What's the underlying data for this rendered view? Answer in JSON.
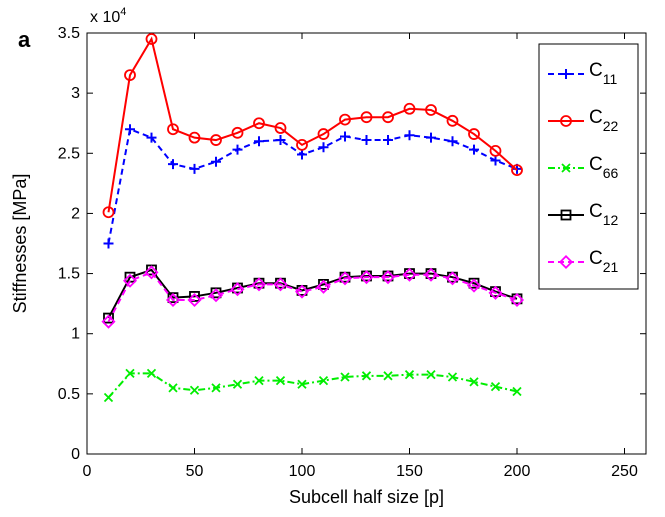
{
  "panel_label": "a",
  "chart_data": {
    "type": "line",
    "xlabel": "Subcell half size [p]",
    "ylabel": "Stiffnesses [MPa]",
    "y_multiplier_label": "x 10",
    "y_multiplier_exp": "4",
    "xlim": [
      0,
      260
    ],
    "ylim": [
      0,
      3.5
    ],
    "xticks": [
      0,
      50,
      100,
      150,
      200,
      250
    ],
    "yticks": [
      0,
      0.5,
      1,
      1.5,
      2,
      2.5,
      3,
      3.5
    ],
    "grid": false,
    "legend_position": "top-right",
    "x": [
      10,
      20,
      30,
      40,
      50,
      60,
      70,
      80,
      90,
      100,
      110,
      120,
      130,
      140,
      150,
      160,
      170,
      180,
      190,
      200
    ],
    "series": [
      {
        "name": "C11",
        "label_main": "C",
        "label_sub": "11",
        "color": "#0000ff",
        "dash": "6,4",
        "marker": "plus",
        "values": [
          1.75,
          2.7,
          2.63,
          2.41,
          2.37,
          2.43,
          2.53,
          2.6,
          2.61,
          2.49,
          2.55,
          2.64,
          2.61,
          2.61,
          2.65,
          2.63,
          2.6,
          2.53,
          2.44,
          2.37
        ]
      },
      {
        "name": "C22",
        "label_main": "C",
        "label_sub": "22",
        "color": "#ff0000",
        "dash": "",
        "marker": "circle",
        "values": [
          2.01,
          3.15,
          3.45,
          2.7,
          2.63,
          2.61,
          2.67,
          2.75,
          2.71,
          2.57,
          2.66,
          2.78,
          2.8,
          2.8,
          2.87,
          2.86,
          2.77,
          2.66,
          2.52,
          2.36
        ]
      },
      {
        "name": "C66",
        "label_main": "C",
        "label_sub": "66",
        "color": "#00ee00",
        "dash": "7,3,2,3",
        "marker": "x",
        "values": [
          0.47,
          0.67,
          0.67,
          0.55,
          0.53,
          0.55,
          0.58,
          0.61,
          0.61,
          0.58,
          0.61,
          0.64,
          0.65,
          0.65,
          0.66,
          0.66,
          0.64,
          0.6,
          0.56,
          0.52
        ]
      },
      {
        "name": "C12",
        "label_main": "C",
        "label_sub": "12",
        "color": "#000000",
        "dash": "",
        "marker": "square",
        "values": [
          1.13,
          1.47,
          1.53,
          1.3,
          1.31,
          1.34,
          1.38,
          1.42,
          1.42,
          1.36,
          1.41,
          1.47,
          1.48,
          1.48,
          1.5,
          1.5,
          1.47,
          1.42,
          1.35,
          1.29
        ]
      },
      {
        "name": "C21",
        "label_main": "C",
        "label_sub": "21",
        "color": "#ff00ff",
        "dash": "6,4",
        "marker": "diamond",
        "values": [
          1.1,
          1.44,
          1.51,
          1.28,
          1.28,
          1.32,
          1.37,
          1.41,
          1.41,
          1.35,
          1.39,
          1.46,
          1.47,
          1.47,
          1.49,
          1.49,
          1.46,
          1.4,
          1.34,
          1.28
        ]
      }
    ]
  }
}
